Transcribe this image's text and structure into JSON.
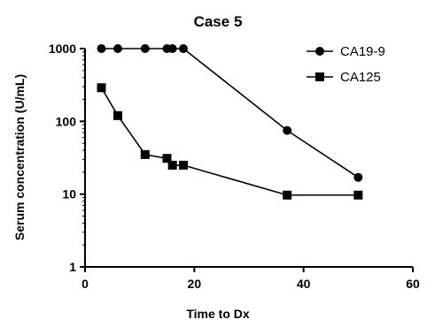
{
  "chart_data": {
    "type": "line",
    "title": "Case 5",
    "xlabel": "Time to Dx",
    "ylabel": "Serum concentration (U/mL)",
    "xlim": [
      0,
      60
    ],
    "ylim": [
      1,
      1000
    ],
    "yscale": "log",
    "x_ticks": [
      0,
      20,
      40,
      60
    ],
    "y_ticks": [
      1,
      10,
      100,
      1000
    ],
    "grid": false,
    "legend_position": "top-right",
    "series": [
      {
        "name": "CA19-9",
        "marker": "circle",
        "color": "#000000",
        "points": [
          {
            "x": 3,
            "y": 1000
          },
          {
            "x": 6,
            "y": 1000
          },
          {
            "x": 11,
            "y": 1000
          },
          {
            "x": 15,
            "y": 1000
          },
          {
            "x": 16,
            "y": 1000
          },
          {
            "x": 18,
            "y": 1000
          },
          {
            "x": 37,
            "y": 75
          },
          {
            "x": 50,
            "y": 17
          }
        ]
      },
      {
        "name": "CA125",
        "marker": "square",
        "color": "#000000",
        "points": [
          {
            "x": 3,
            "y": 290
          },
          {
            "x": 6,
            "y": 120
          },
          {
            "x": 11,
            "y": 35
          },
          {
            "x": 15,
            "y": 31
          },
          {
            "x": 16,
            "y": 25
          },
          {
            "x": 18,
            "y": 25
          },
          {
            "x": 37,
            "y": 9.7
          },
          {
            "x": 50,
            "y": 9.7
          }
        ]
      }
    ]
  }
}
